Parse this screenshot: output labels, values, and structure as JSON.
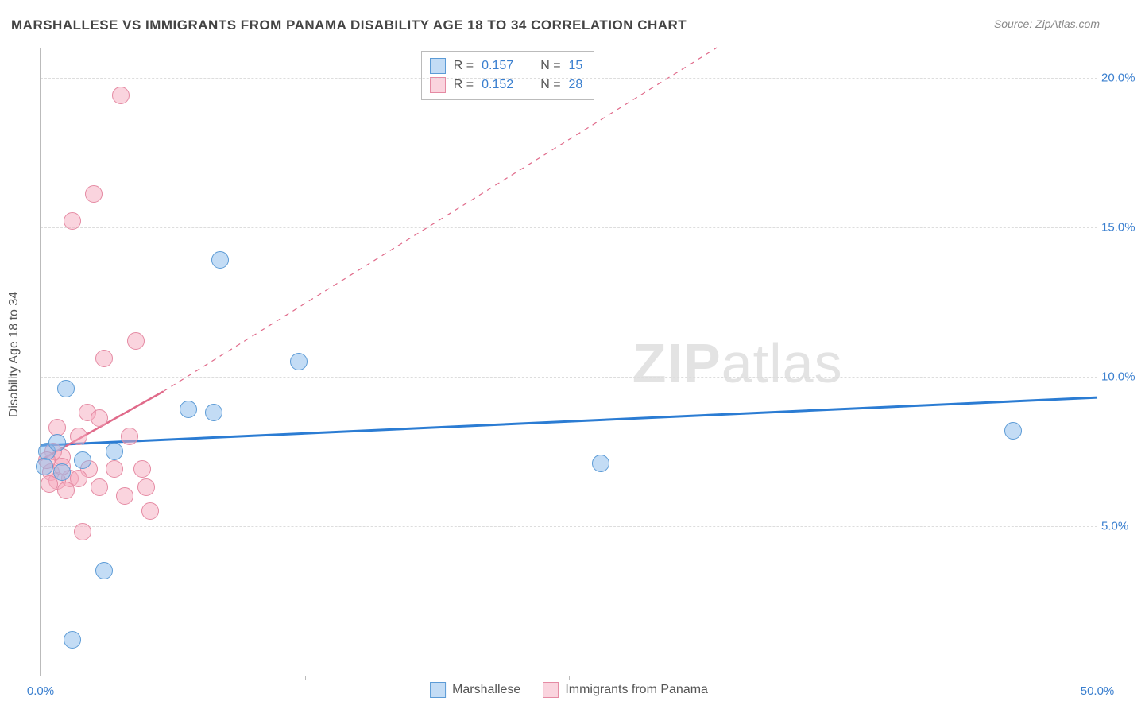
{
  "title": "MARSHALLESE VS IMMIGRANTS FROM PANAMA DISABILITY AGE 18 TO 34 CORRELATION CHART",
  "source_prefix": "Source: ",
  "source_name": "ZipAtlas.com",
  "ylabel": "Disability Age 18 to 34",
  "watermark_bold": "ZIP",
  "watermark_rest": "atlas",
  "chart": {
    "type": "scatter",
    "background_color": "#ffffff",
    "grid_color": "#dddddd",
    "axis_color": "#bbbbbb",
    "tick_label_color": "#3a7fcf",
    "title_fontsize": 17,
    "label_fontsize": 16,
    "tick_fontsize": 15,
    "xlim": [
      0,
      50
    ],
    "ylim": [
      0,
      21
    ],
    "xticks": [
      0,
      50
    ],
    "xtick_labels": [
      "0.0%",
      "50.0%"
    ],
    "xtick_minor": [
      12.5,
      25,
      37.5
    ],
    "yticks": [
      5,
      10,
      15,
      20
    ],
    "ytick_labels": [
      "5.0%",
      "10.0%",
      "15.0%",
      "20.0%"
    ],
    "marker_radius": 10,
    "series": [
      {
        "name": "Marshallese",
        "color_fill": "rgba(135,185,235,0.5)",
        "color_stroke": "#5c9bd6",
        "r_value": "0.157",
        "n_value": "15",
        "points": [
          [
            46.0,
            8.2
          ],
          [
            26.5,
            7.1
          ],
          [
            8.5,
            13.9
          ],
          [
            12.2,
            10.5
          ],
          [
            1.2,
            9.6
          ],
          [
            7.0,
            8.9
          ],
          [
            8.2,
            8.8
          ],
          [
            3.5,
            7.5
          ],
          [
            0.3,
            7.5
          ],
          [
            3.0,
            3.5
          ],
          [
            1.5,
            1.2
          ],
          [
            2.0,
            7.2
          ],
          [
            0.8,
            7.8
          ],
          [
            1.0,
            6.8
          ],
          [
            0.2,
            7.0
          ]
        ],
        "trend": {
          "style": "solid",
          "width": 3,
          "color": "#2b7cd3",
          "x1": 0,
          "y1": 7.7,
          "x2": 50,
          "y2": 9.3,
          "x1d": 0,
          "y1d": 7.7,
          "x2d": 50,
          "y2d": 9.3
        }
      },
      {
        "name": "Immigrants from Panama",
        "color_fill": "rgba(245,170,190,0.5)",
        "color_stroke": "#e58aa3",
        "r_value": "0.152",
        "n_value": "28",
        "points": [
          [
            3.8,
            19.4
          ],
          [
            2.5,
            16.1
          ],
          [
            1.5,
            15.2
          ],
          [
            4.5,
            11.2
          ],
          [
            3.0,
            10.6
          ],
          [
            2.2,
            8.8
          ],
          [
            2.8,
            8.6
          ],
          [
            4.2,
            8.0
          ],
          [
            0.8,
            8.3
          ],
          [
            1.8,
            8.0
          ],
          [
            1.0,
            7.3
          ],
          [
            2.3,
            6.9
          ],
          [
            3.5,
            6.9
          ],
          [
            4.8,
            6.9
          ],
          [
            1.4,
            6.6
          ],
          [
            1.8,
            6.6
          ],
          [
            2.8,
            6.3
          ],
          [
            0.5,
            6.8
          ],
          [
            0.8,
            6.5
          ],
          [
            1.2,
            6.2
          ],
          [
            4.0,
            6.0
          ],
          [
            5.0,
            6.3
          ],
          [
            5.2,
            5.5
          ],
          [
            2.0,
            4.8
          ],
          [
            0.6,
            7.5
          ],
          [
            1.0,
            7.0
          ],
          [
            0.3,
            7.2
          ],
          [
            0.4,
            6.4
          ]
        ],
        "trend": {
          "style": "solid-then-dash",
          "width": 2.5,
          "color": "#e06a8a",
          "x1": 0,
          "y1": 7.2,
          "x2": 5.8,
          "y2": 9.5,
          "x1d": 5.8,
          "y1d": 9.5,
          "x2d": 32,
          "y2d": 21
        }
      }
    ]
  },
  "rn_legend": {
    "r_label": "R =",
    "n_label": "N ="
  },
  "bottom_legend_labels": [
    "Marshallese",
    "Immigrants from Panama"
  ]
}
